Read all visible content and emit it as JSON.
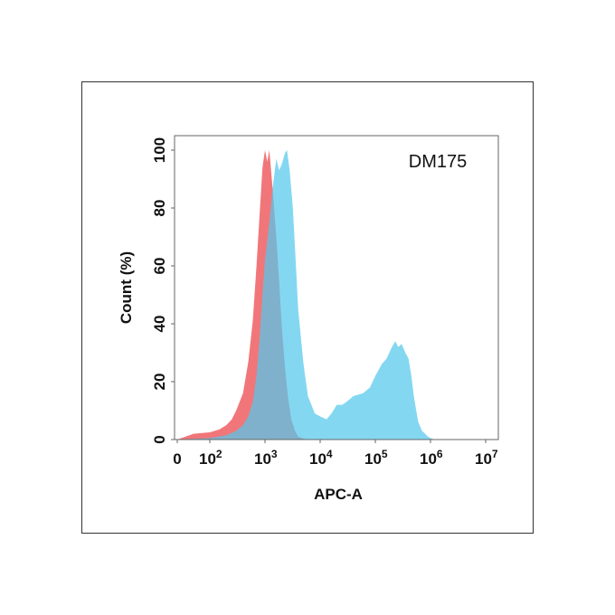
{
  "chart_data": {
    "type": "area",
    "annotation": "DM175",
    "xlabel": "APC-A",
    "ylabel": "Count  (%)",
    "x_scale": "log (first tick 0)",
    "xlim": [
      0,
      10000000
    ],
    "ylim": [
      0,
      105
    ],
    "x_ticks": [
      {
        "base": "0",
        "exp": ""
      },
      {
        "base": "10",
        "exp": "2"
      },
      {
        "base": "10",
        "exp": "3"
      },
      {
        "base": "10",
        "exp": "4"
      },
      {
        "base": "10",
        "exp": "5"
      },
      {
        "base": "10",
        "exp": "6"
      },
      {
        "base": "10",
        "exp": "7"
      }
    ],
    "y_ticks": [
      "0",
      "20",
      "40",
      "60",
      "80",
      "100"
    ],
    "grid": false,
    "series": [
      {
        "color": "#f0676b",
        "x": [
          0,
          50,
          100,
          150,
          200,
          250,
          300,
          400,
          500,
          600,
          700,
          800,
          900,
          1000,
          1100,
          1200,
          1300,
          1400,
          1600,
          1800,
          2000,
          2300,
          2600,
          3000,
          3500,
          4000,
          5000,
          6000
        ],
        "y": [
          0,
          2,
          2.5,
          3.5,
          5,
          7,
          10,
          16,
          27,
          41,
          60,
          78,
          94,
          100,
          96,
          100,
          92,
          85,
          70,
          55,
          40,
          25,
          15,
          7,
          3,
          1,
          0.3,
          0
        ]
      },
      {
        "color": "#54c8ec",
        "x": [
          0,
          100,
          200,
          300,
          400,
          500,
          600,
          700,
          800,
          900,
          1000,
          1200,
          1400,
          1600,
          1800,
          2000,
          2300,
          2500,
          2800,
          3200,
          3600,
          4000,
          5000,
          6000,
          8000,
          10000,
          13000,
          16000,
          20000,
          25000,
          30000,
          40000,
          60000,
          80000,
          100000,
          130000,
          160000,
          200000,
          230000,
          260000,
          300000,
          350000,
          400000,
          450000,
          500000,
          550000,
          600000,
          700000,
          800000,
          900000,
          1000000,
          1200000
        ],
        "y": [
          0,
          0.5,
          1.5,
          3,
          5,
          8,
          13,
          22,
          35,
          50,
          62,
          75,
          88,
          97,
          93,
          95,
          99,
          100,
          93,
          80,
          62,
          45,
          26,
          15,
          9,
          8,
          7,
          9,
          12,
          12,
          13,
          15,
          16,
          18,
          22,
          26,
          28,
          32,
          34,
          32,
          33,
          30,
          28,
          22,
          15,
          10,
          6,
          3,
          2,
          1,
          0.5,
          0
        ]
      }
    ]
  }
}
